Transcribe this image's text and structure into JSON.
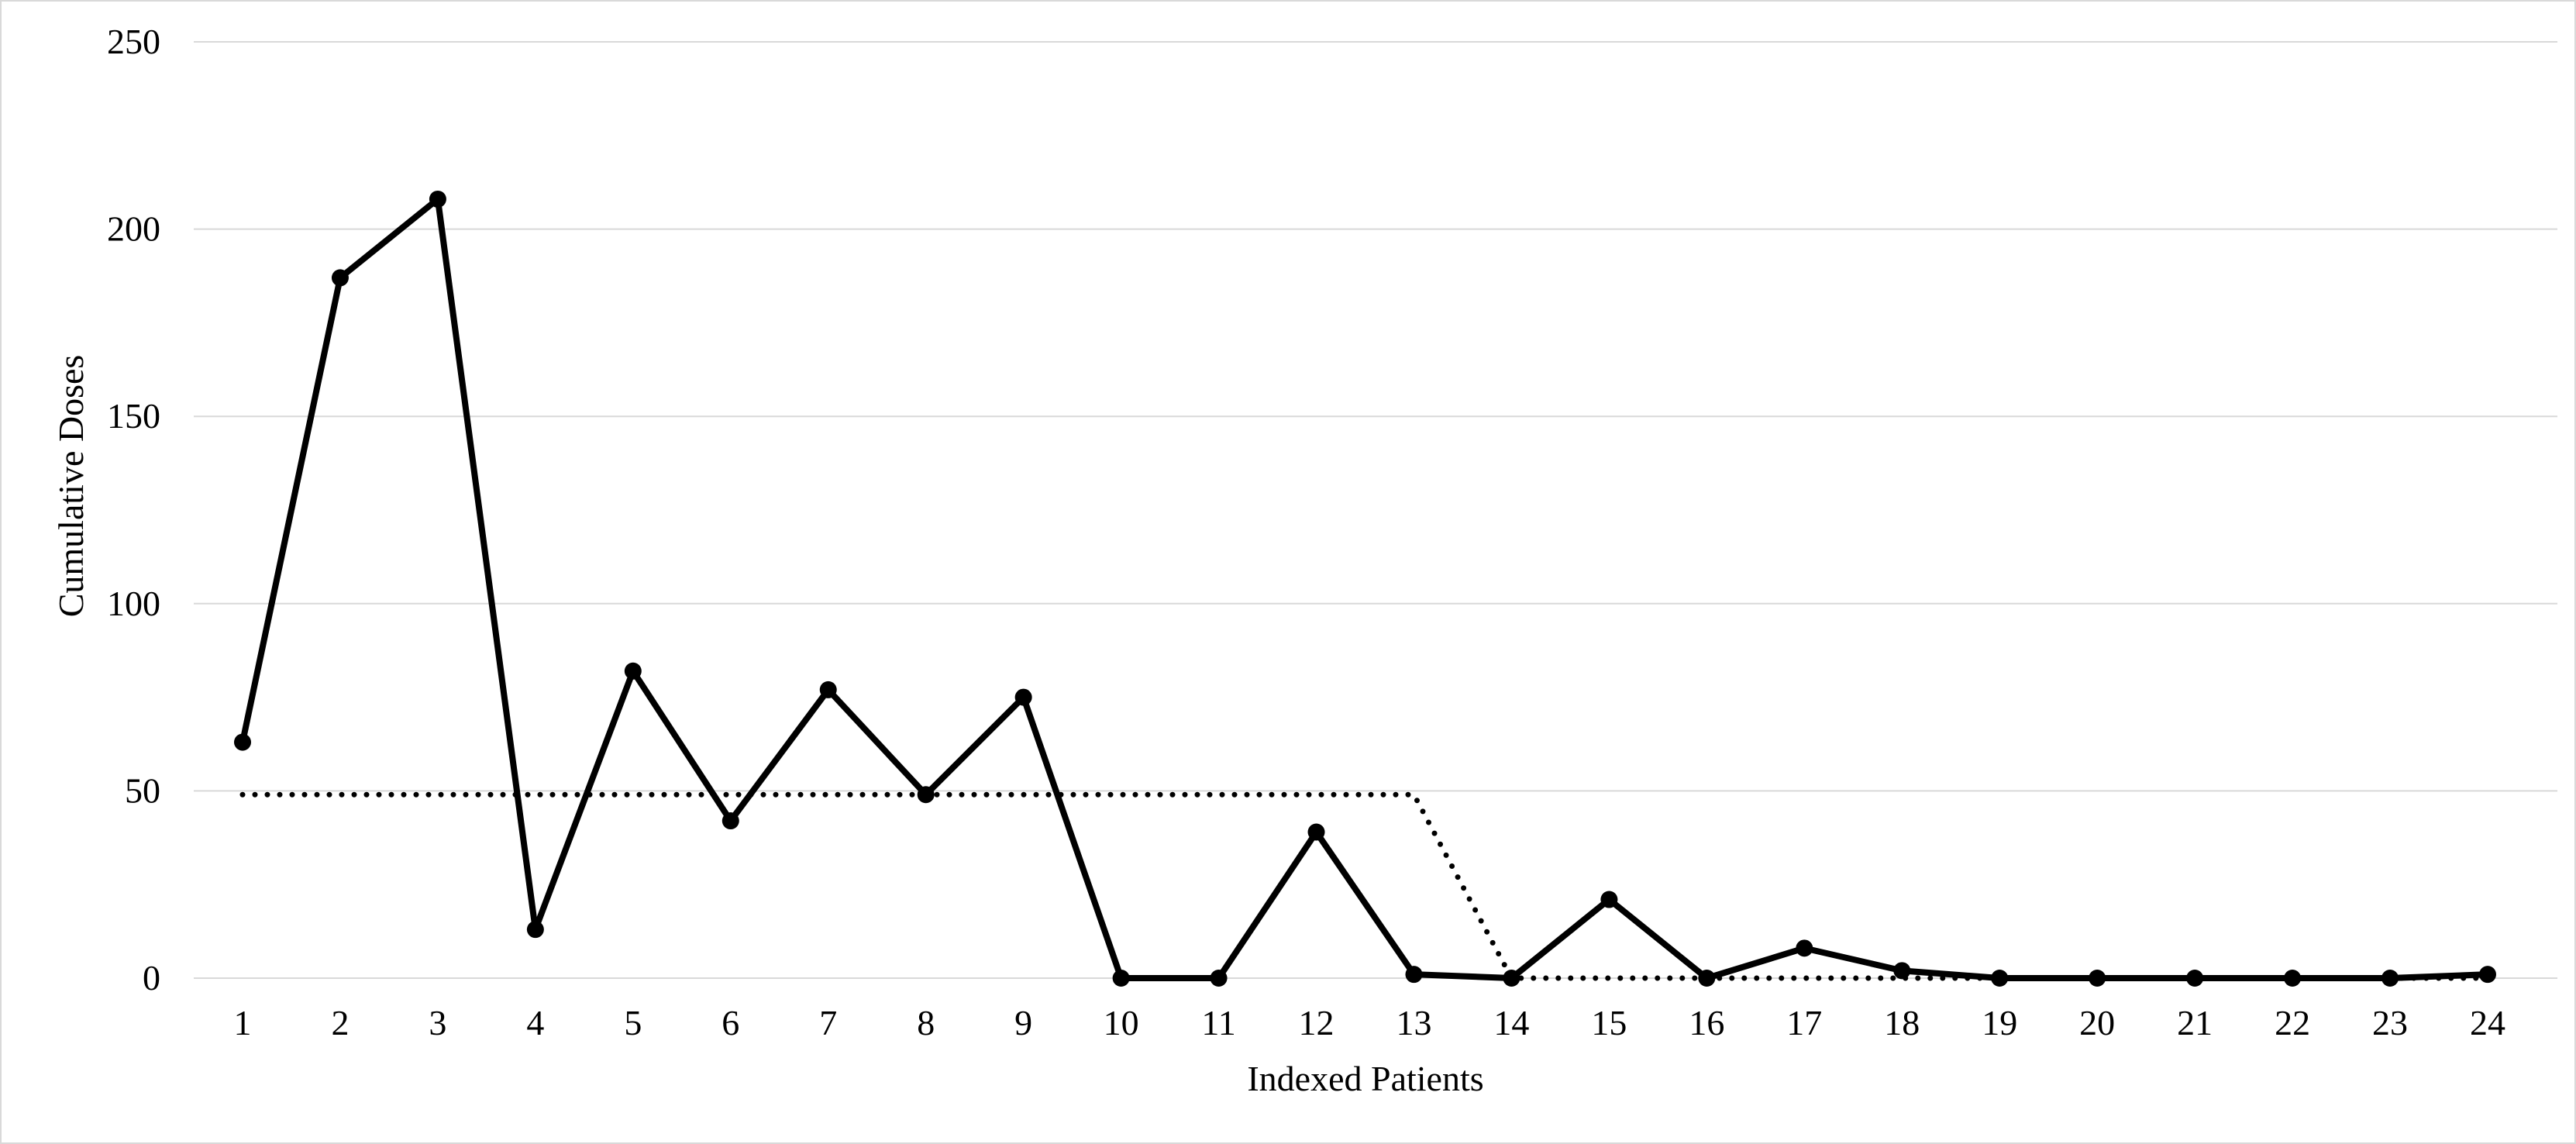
{
  "chart_data": {
    "type": "line",
    "title": "",
    "xlabel": "Indexed Patients",
    "ylabel": "Cumulative Doses",
    "categories": [
      "1",
      "2",
      "3",
      "4",
      "5",
      "6",
      "7",
      "8",
      "9",
      "10",
      "11",
      "12",
      "13",
      "14",
      "15",
      "16",
      "17",
      "18",
      "19",
      "20",
      "21",
      "22",
      "23",
      "24"
    ],
    "ylim": [
      0,
      250
    ],
    "yticks": [
      0,
      50,
      100,
      150,
      200,
      250
    ],
    "grid": true,
    "legend": "none",
    "series": [
      {
        "style": "solid-with-markers",
        "color": "#000000",
        "values": [
          63,
          187,
          208,
          13,
          82,
          42,
          77,
          49,
          75,
          0,
          0,
          39,
          1,
          0,
          21,
          0,
          8,
          2,
          0,
          0,
          0,
          0,
          0,
          1
        ]
      },
      {
        "style": "dotted",
        "color": "#000000",
        "values": [
          49,
          49,
          49,
          49,
          49,
          49,
          49,
          49,
          49,
          49,
          49,
          49,
          49,
          0,
          0,
          0,
          0,
          0,
          0,
          0,
          0,
          0,
          0,
          0
        ]
      }
    ]
  }
}
